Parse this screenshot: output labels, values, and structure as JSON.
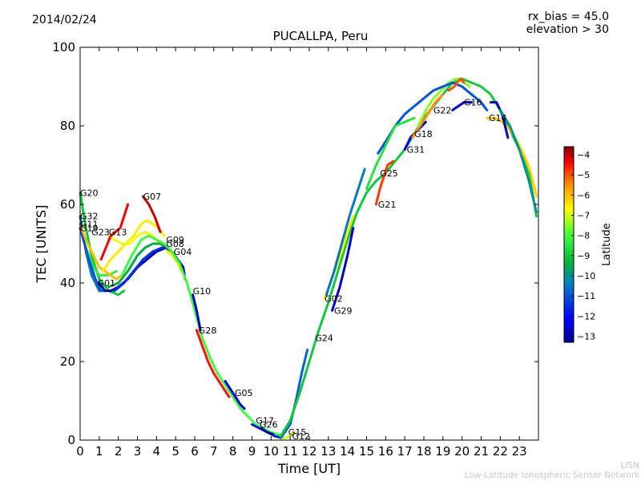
{
  "header": {
    "date": "2014/02/24",
    "rx_bias": "rx_bias = 45.0",
    "elevation": "elevation > 30"
  },
  "footer": {
    "line1": "LISN",
    "line2": "Low-Latitude Ionospheric Sensor Network"
  },
  "chart_data": {
    "type": "line",
    "title": "PUCALLPA, Peru",
    "xlabel": "Time [UT]",
    "ylabel": "TEC [UNITS]",
    "xlim": [
      0,
      24
    ],
    "ylim": [
      0,
      100
    ],
    "xticks": [
      0,
      1,
      2,
      3,
      4,
      5,
      6,
      7,
      8,
      9,
      10,
      11,
      12,
      13,
      14,
      15,
      16,
      17,
      18,
      19,
      20,
      21,
      22,
      23
    ],
    "yticks": [
      0,
      20,
      40,
      60,
      80,
      100
    ],
    "colorbar": {
      "label": "Latitude",
      "min": -13.3,
      "max": -3.6,
      "ticks": [
        -4,
        -5,
        -6,
        -7,
        -8,
        -9,
        -10,
        -11,
        -12,
        -13
      ]
    },
    "series": [
      {
        "name": "G20",
        "label_at": [
          0.0,
          63
        ],
        "lat": -9.0,
        "x": [
          0,
          0.3,
          0.6,
          1.0,
          1.5,
          2.0,
          2.3
        ],
        "y": [
          63,
          54,
          47,
          41,
          38,
          37,
          38
        ]
      },
      {
        "name": "G32",
        "label_at": [
          0.0,
          57
        ],
        "lat": -10.5,
        "x": [
          0,
          0.3,
          0.6,
          1.0,
          1.3
        ],
        "y": [
          57,
          48,
          42,
          38,
          38
        ]
      },
      {
        "name": "G11",
        "label_at": [
          0.0,
          55
        ],
        "lat": -8.3,
        "x": [
          0,
          0.3,
          0.7,
          1.0,
          1.5,
          1.9
        ],
        "y": [
          54,
          49,
          44,
          42,
          42,
          43
        ]
      },
      {
        "name": "G19",
        "label_at": [
          0.0,
          54
        ],
        "lat": -11.0,
        "x": [
          0,
          0.4,
          0.8,
          1.1
        ],
        "y": [
          54,
          47,
          41,
          38
        ]
      },
      {
        "name": "G23",
        "label_at": [
          0.6,
          53
        ],
        "lat": -6.0,
        "x": [
          0,
          0.3,
          0.7,
          1.0,
          1.3,
          1.6,
          1.9,
          2.2
        ],
        "y": [
          55,
          51,
          47,
          44,
          43,
          42,
          41,
          42
        ]
      },
      {
        "name": "G13",
        "label_at": [
          1.5,
          53
        ],
        "lat": -6.8,
        "x": [
          1.5,
          1.8,
          2.2,
          2.6,
          3.0,
          3.4,
          3.8,
          4.2,
          4.6,
          5.0,
          5.3
        ],
        "y": [
          52,
          51,
          50,
          50,
          52,
          53,
          52,
          50,
          48,
          46,
          43
        ]
      },
      {
        "name": "G13b",
        "label_at": null,
        "lat": -4.3,
        "x": [
          1.1,
          1.6,
          2.1,
          2.5
        ],
        "y": [
          46,
          52,
          54,
          60
        ]
      },
      {
        "name": "G07",
        "label_at": [
          3.3,
          62
        ],
        "lat": -6.5,
        "x": [
          1.2,
          1.6,
          2.0,
          2.4,
          2.8,
          3.2,
          3.5,
          3.8,
          4.1,
          4.4
        ],
        "y": [
          43,
          46,
          48,
          50,
          52,
          55,
          56,
          55,
          54,
          52
        ]
      },
      {
        "name": "G07b",
        "label_at": null,
        "lat": -4.0,
        "x": [
          3.3,
          3.6,
          3.9,
          4.2
        ],
        "y": [
          62,
          60,
          57,
          53
        ]
      },
      {
        "name": "G01",
        "label_at": [
          0.9,
          40
        ],
        "lat": -13.0,
        "x": [
          1.0,
          1.3,
          1.6,
          2.0,
          2.5,
          3.0,
          3.5,
          4.0,
          4.5,
          4.8,
          5.1,
          5.4,
          5.5
        ],
        "y": [
          40,
          38,
          38,
          39,
          41,
          44,
          46,
          48,
          49,
          48,
          46,
          44,
          41
        ]
      },
      {
        "name": "G09",
        "label_at": [
          4.5,
          51
        ],
        "lat": -9.5,
        "x": [
          1.5,
          2.0,
          2.5,
          3.0,
          3.4,
          3.8,
          4.2,
          4.6
        ],
        "y": [
          39,
          40,
          43,
          47,
          49,
          50,
          50,
          49
        ]
      },
      {
        "name": "G08",
        "label_at": [
          4.5,
          50
        ],
        "lat": -11.5,
        "x": [
          1.8,
          2.3,
          2.8,
          3.3,
          3.8,
          4.3,
          4.6
        ],
        "y": [
          38,
          40,
          43,
          46,
          48,
          49,
          49
        ]
      },
      {
        "name": "G04",
        "label_at": [
          4.9,
          48
        ],
        "lat": -8.0,
        "x": [
          2.2,
          2.7,
          3.2,
          3.6,
          4.0,
          4.4,
          4.8,
          5.2,
          5.6,
          6.0,
          6.4,
          6.8,
          7.2,
          7.6,
          8.0,
          8.4,
          8.8,
          9.2,
          9.6,
          10.0,
          10.3,
          10.6
        ],
        "y": [
          42,
          47,
          51,
          52,
          51,
          50,
          48,
          45,
          40,
          33,
          26,
          21,
          17,
          14,
          11,
          8,
          6,
          4,
          3,
          2,
          1.5,
          1.2
        ]
      },
      {
        "name": "G10",
        "label_at": [
          5.9,
          38
        ],
        "lat": -12.8,
        "x": [
          5.9,
          6.1,
          6.3
        ],
        "y": [
          37,
          33,
          28
        ]
      },
      {
        "name": "G28",
        "label_at": [
          6.2,
          28
        ],
        "lat": -4.5,
        "x": [
          6.1,
          6.4,
          6.7,
          7.0,
          7.4,
          7.8
        ],
        "y": [
          28,
          24,
          20,
          17,
          14,
          11
        ]
      },
      {
        "name": "G05",
        "label_at": [
          8.1,
          12
        ],
        "lat": -12.5,
        "x": [
          7.6,
          8.0,
          8.4,
          8.6
        ],
        "y": [
          15,
          12,
          9,
          8
        ]
      },
      {
        "name": "G17",
        "label_at": [
          9.2,
          5
        ],
        "lat": -11.8,
        "x": [
          9.0,
          9.4,
          9.8,
          10.2,
          10.6
        ],
        "y": [
          4,
          3,
          2,
          1,
          0.5
        ]
      },
      {
        "name": "G26",
        "label_at": [
          9.4,
          4
        ],
        "lat": -13.0,
        "x": [
          9.5,
          9.8,
          10.1
        ],
        "y": [
          3,
          2,
          1.5
        ]
      },
      {
        "name": "G15",
        "label_at": [
          10.9,
          2
        ],
        "lat": -10.8,
        "x": [
          10.5,
          11.0,
          11.3,
          11.6,
          11.9
        ],
        "y": [
          0.5,
          4,
          10,
          17,
          23
        ]
      },
      {
        "name": "G12",
        "label_at": [
          11.1,
          1
        ],
        "lat": -7.0,
        "x": [
          10.6,
          10.9,
          11.2
        ],
        "y": [
          0.3,
          0.8,
          2
        ]
      },
      {
        "name": "G24",
        "label_at": [
          12.3,
          26
        ],
        "lat": -9.0,
        "x": [
          10.5,
          11.0,
          11.5,
          12.0,
          12.5,
          13.0,
          13.5,
          14.0,
          14.5,
          15.0,
          15.5,
          16.0,
          16.5,
          17.0,
          17.5,
          18.0,
          18.5,
          19.0,
          19.5,
          20.0,
          20.5,
          21.0,
          21.5,
          22.0,
          22.5,
          23.0,
          23.5,
          23.9
        ],
        "y": [
          1,
          5,
          12,
          20,
          28,
          35,
          43,
          51,
          58,
          63,
          66,
          68,
          71,
          74,
          78,
          82,
          85,
          88,
          91,
          92,
          91,
          90,
          88,
          84,
          79,
          74,
          68,
          57
        ]
      },
      {
        "name": "G02",
        "label_at": [
          12.8,
          36
        ],
        "lat": -6.5,
        "x": [
          12.8,
          13.1,
          13.4,
          13.7,
          14.0,
          14.3
        ],
        "y": [
          36,
          40,
          44,
          48,
          53,
          57
        ]
      },
      {
        "name": "G29",
        "label_at": [
          13.3,
          33
        ],
        "lat": -12.8,
        "x": [
          13.2,
          13.6,
          14.0,
          14.3
        ],
        "y": [
          33,
          39,
          47,
          54
        ]
      },
      {
        "name": "G25",
        "label_at": [
          15.7,
          68
        ],
        "lat": -10.5,
        "x": [
          12.9,
          13.3,
          13.7,
          14.1,
          14.5,
          14.9
        ],
        "y": [
          37,
          43,
          50,
          57,
          63,
          69
        ]
      },
      {
        "name": "G21",
        "label_at": [
          15.6,
          60
        ],
        "lat": -4.8,
        "x": [
          15.5,
          15.7,
          15.9,
          16.1,
          16.4
        ],
        "y": [
          60,
          64,
          67,
          70,
          71
        ]
      },
      {
        "name": "G31",
        "label_at": [
          17.1,
          74
        ],
        "lat": -12.5,
        "x": [
          17.0,
          17.3,
          17.7,
          18.1
        ],
        "y": [
          74,
          77,
          79,
          81
        ]
      },
      {
        "name": "G18",
        "label_at": [
          17.5,
          78
        ],
        "lat": -5.5,
        "x": [
          17.4,
          17.8,
          18.2,
          18.6,
          19.0
        ],
        "y": [
          77,
          80,
          83,
          86,
          88
        ]
      },
      {
        "name": "G22",
        "label_at": [
          18.5,
          84
        ],
        "lat": -7.5,
        "x": [
          17.7,
          18.1,
          18.5,
          18.9,
          19.3,
          19.7,
          20.1,
          20.4
        ],
        "y": [
          80,
          84,
          87,
          89,
          91,
          92,
          91,
          90
        ]
      },
      {
        "name": "G16",
        "label_at": [
          20.1,
          86
        ],
        "lat": -11.0,
        "x": [
          15.6,
          16.0,
          16.5,
          17.0,
          17.5,
          18.0,
          18.5,
          19.0,
          19.5,
          20.0,
          20.5,
          21.0,
          21.3
        ],
        "y": [
          73,
          76,
          80,
          83,
          85,
          87,
          89,
          90,
          91,
          90,
          88,
          86,
          84
        ]
      },
      {
        "name": "G16b",
        "label_at": null,
        "lat": -12.5,
        "x": [
          19.5,
          19.8,
          20.1,
          20.5
        ],
        "y": [
          84,
          85,
          86,
          86
        ]
      },
      {
        "name": "G14",
        "label_at": [
          21.4,
          82
        ],
        "lat": -6.2,
        "x": [
          21.3,
          21.7,
          22.1,
          22.5,
          22.9,
          23.3,
          23.6,
          23.9
        ],
        "y": [
          82,
          82,
          81,
          79,
          76,
          72,
          68,
          62
        ]
      },
      {
        "name": "G14b",
        "label_at": null,
        "lat": -12.8,
        "x": [
          21.5,
          21.8,
          22.1,
          22.4
        ],
        "y": [
          86,
          86,
          83,
          77
        ]
      },
      {
        "name": "Gx1",
        "label_at": null,
        "lat": -8.5,
        "x": [
          15.0,
          15.5,
          16.0,
          16.5,
          17.0,
          17.5
        ],
        "y": [
          64,
          70,
          75,
          80,
          81,
          82
        ]
      },
      {
        "name": "Gx2",
        "label_at": null,
        "lat": -5.0,
        "x": [
          19.3,
          19.6,
          19.9,
          20.1
        ],
        "y": [
          89,
          90,
          92,
          91
        ]
      },
      {
        "name": "Gx3",
        "label_at": null,
        "lat": -10.0,
        "x": [
          22.0,
          22.5,
          23.0,
          23.5,
          23.9
        ],
        "y": [
          84,
          80,
          74,
          66,
          58
        ]
      }
    ]
  }
}
